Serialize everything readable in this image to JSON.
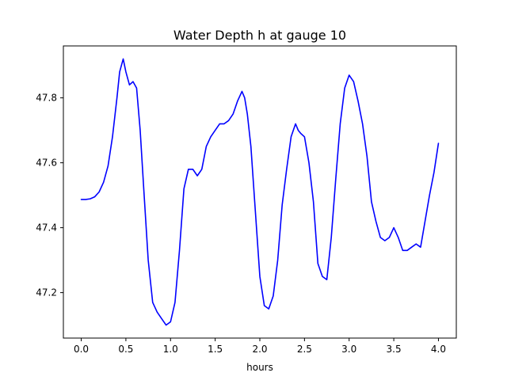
{
  "chart_data": {
    "type": "line",
    "title": "Water Depth h at gauge 10",
    "xlabel": "hours",
    "ylabel": "",
    "xlim": [
      -0.2,
      4.2
    ],
    "ylim": [
      47.06,
      47.96
    ],
    "xticks": [
      0.0,
      0.5,
      1.0,
      1.5,
      2.0,
      2.5,
      3.0,
      3.5,
      4.0
    ],
    "xtick_labels": [
      "0.0",
      "0.5",
      "1.0",
      "1.5",
      "2.0",
      "2.5",
      "3.0",
      "3.5",
      "4.0"
    ],
    "yticks": [
      47.2,
      47.4,
      47.6,
      47.8
    ],
    "ytick_labels": [
      "47.2",
      "47.4",
      "47.6",
      "47.8"
    ],
    "grid": false,
    "series": [
      {
        "color": "#0000ff",
        "x": [
          0.0,
          0.05,
          0.1,
          0.15,
          0.2,
          0.25,
          0.3,
          0.35,
          0.4,
          0.43,
          0.47,
          0.5,
          0.54,
          0.58,
          0.62,
          0.66,
          0.7,
          0.75,
          0.8,
          0.85,
          0.9,
          0.95,
          1.0,
          1.05,
          1.1,
          1.15,
          1.2,
          1.25,
          1.3,
          1.35,
          1.4,
          1.45,
          1.5,
          1.55,
          1.6,
          1.65,
          1.7,
          1.75,
          1.8,
          1.83,
          1.86,
          1.9,
          1.95,
          2.0,
          2.05,
          2.1,
          2.15,
          2.2,
          2.25,
          2.3,
          2.35,
          2.4,
          2.43,
          2.46,
          2.5,
          2.55,
          2.6,
          2.65,
          2.7,
          2.75,
          2.8,
          2.85,
          2.9,
          2.95,
          3.0,
          3.05,
          3.1,
          3.15,
          3.2,
          3.25,
          3.3,
          3.35,
          3.4,
          3.45,
          3.5,
          3.55,
          3.6,
          3.65,
          3.7,
          3.75,
          3.8,
          3.85,
          3.9,
          3.95,
          4.0
        ],
        "y": [
          47.487,
          47.487,
          47.489,
          47.495,
          47.51,
          47.54,
          47.59,
          47.68,
          47.8,
          47.88,
          47.92,
          47.88,
          47.84,
          47.85,
          47.83,
          47.7,
          47.52,
          47.3,
          47.17,
          47.14,
          47.12,
          47.1,
          47.11,
          47.17,
          47.33,
          47.52,
          47.58,
          47.58,
          47.56,
          47.58,
          47.65,
          47.68,
          47.7,
          47.72,
          47.72,
          47.73,
          47.75,
          47.79,
          47.82,
          47.8,
          47.75,
          47.65,
          47.45,
          47.25,
          47.16,
          47.15,
          47.19,
          47.3,
          47.47,
          47.58,
          47.68,
          47.72,
          47.7,
          47.69,
          47.68,
          47.6,
          47.48,
          47.29,
          47.25,
          47.24,
          47.37,
          47.55,
          47.72,
          47.83,
          47.87,
          47.85,
          47.79,
          47.72,
          47.62,
          47.48,
          47.42,
          47.37,
          47.36,
          47.37,
          47.4,
          47.37,
          47.33,
          47.33,
          47.34,
          47.35,
          47.34,
          47.42,
          47.5,
          47.57,
          47.66
        ]
      }
    ]
  }
}
